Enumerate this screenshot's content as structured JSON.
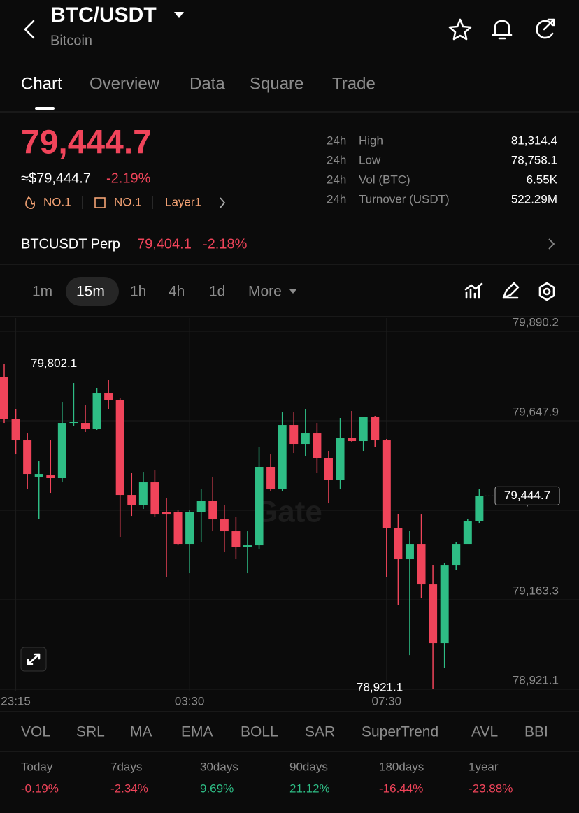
{
  "header": {
    "symbol": "BTC/USDT",
    "name": "Bitcoin"
  },
  "tabs": [
    "Chart",
    "Overview",
    "Data",
    "Square",
    "Trade"
  ],
  "price": {
    "last": "79,444.7",
    "usd": "≈$79,444.7",
    "change": "-2.19%",
    "tags": [
      "NO.1",
      "NO.1",
      "Layer1"
    ]
  },
  "stats": [
    {
      "period": "24h",
      "label": "High",
      "value": "81,314.4"
    },
    {
      "period": "24h",
      "label": "Low",
      "value": "78,758.1"
    },
    {
      "period": "24h",
      "label": "Vol (BTC)",
      "value": "6.55K"
    },
    {
      "period": "24h",
      "label": "Turnover (USDT)",
      "value": "522.29M"
    }
  ],
  "perp": {
    "name": "BTCUSDT Perp",
    "price": "79,404.1",
    "change": "-2.18%"
  },
  "intervals": [
    "1m",
    "15m",
    "1h",
    "4h",
    "1d",
    "More"
  ],
  "chart_data": {
    "type": "candlestick",
    "watermark": "Gate",
    "up_color": "#2ebd85",
    "down_color": "#f0445a",
    "open": [
      79765.3,
      79651.7,
      79594.9,
      79494.6,
      79500.2,
      79492.7,
      79642.2,
      79642.2,
      79627.1,
      79723.6,
      79704.7,
      79447.2,
      79420.7,
      79481.3,
      79401.8,
      79401.8,
      79314.7,
      79401.8,
      79432.1,
      79381.0,
      79348.8,
      79307.2,
      79310.9,
      79523.0,
      79462.4,
      79636.5,
      79585.4,
      79613.8,
      79547.6,
      79488.9,
      79602.5,
      79593.0,
      79657.4,
      79594.9,
      79358.3,
      79273.1,
      79314.7,
      79204.9,
      79045.9,
      79257.9,
      79314.7,
      79377.2
    ],
    "high": [
      79802.1,
      79680.1,
      79613.8,
      79538.1,
      79594.9,
      79699.0,
      79750.1,
      79689.5,
      79736.9,
      79759.6,
      79708.5,
      79507.8,
      79509.7,
      79513.5,
      79439.7,
      79405.6,
      79405.6,
      79462.4,
      79496.5,
      79420.7,
      79386.7,
      79348.8,
      79576.0,
      79557.0,
      79670.6,
      79670.6,
      79680.1,
      79642.2,
      79566.5,
      79655.5,
      79674.4,
      79659.3,
      79661.1,
      79598.7,
      79396.1,
      79348.8,
      79396.1,
      79257.9,
      79261.7,
      79320.4,
      79382.9,
      79462.4
    ],
    "low": [
      79642.2,
      79557.0,
      79462.4,
      79382.9,
      79452.9,
      79481.3,
      79632.8,
      79617.6,
      79623.3,
      79680.1,
      79333.7,
      79390.4,
      79409.4,
      79386.7,
      79225.8,
      79310.9,
      79235.2,
      79320.4,
      79348.8,
      79292.0,
      79273.1,
      79235.2,
      79301.5,
      79458.6,
      79458.6,
      79560.8,
      79553.2,
      79507.8,
      79424.5,
      79462.4,
      79591.1,
      79566.5,
      79576.0,
      79225.8,
      79150.0,
      79013.7,
      79167.1,
      78921.1,
      78979.7,
      79244.7,
      79320.4,
      79371.5
    ],
    "close": [
      79651.7,
      79594.9,
      79504.0,
      79504.0,
      79492.7,
      79642.2,
      79646.0,
      79627.1,
      79723.6,
      79704.7,
      79447.2,
      79420.7,
      79481.3,
      79396.1,
      79396.1,
      79314.7,
      79401.8,
      79432.1,
      79381.0,
      79348.8,
      79307.2,
      79310.9,
      79523.0,
      79462.4,
      79636.5,
      79585.4,
      79613.8,
      79547.6,
      79488.9,
      79602.5,
      79593.0,
      79657.4,
      79594.9,
      79358.3,
      79273.1,
      79314.7,
      79204.9,
      79045.9,
      79257.9,
      79314.7,
      79377.2,
      79444.7
    ],
    "ylim": [
      78921.1,
      79890.2
    ],
    "yticks": [
      {
        "value": 79890.2,
        "label": "79,890.2"
      },
      {
        "value": 79647.9,
        "label": "79,647.9"
      },
      {
        "value": 79405.6,
        "label": "79,405.6"
      },
      {
        "value": 79163.3,
        "label": "79,163.3"
      },
      {
        "value": 78921.1,
        "label": "78,921.1"
      }
    ],
    "xticks": [
      {
        "value": 1,
        "label": "23:15"
      },
      {
        "value": 16,
        "label": "03:30"
      },
      {
        "value": 33,
        "label": "07:30"
      }
    ],
    "high_marker": {
      "value": 79802.1,
      "label": "79,802.1"
    },
    "low_marker": {
      "value": 78921.1,
      "label": "78,921.1"
    },
    "last_price": {
      "value": 79444.7,
      "label": "79,444.7"
    },
    "grid": true
  },
  "indicators": [
    "VOL",
    "SRL",
    "MA",
    "EMA",
    "BOLL",
    "SAR",
    "SuperTrend",
    "AVL",
    "BBI"
  ],
  "performance": [
    {
      "period": "Today",
      "change": "-0.19%"
    },
    {
      "period": "7days",
      "change": "-2.34%"
    },
    {
      "period": "30days",
      "change": "9.69%"
    },
    {
      "period": "90days",
      "change": "21.12%"
    },
    {
      "period": "180days",
      "change": "-16.44%"
    },
    {
      "period": "1year",
      "change": "-23.88%"
    }
  ]
}
